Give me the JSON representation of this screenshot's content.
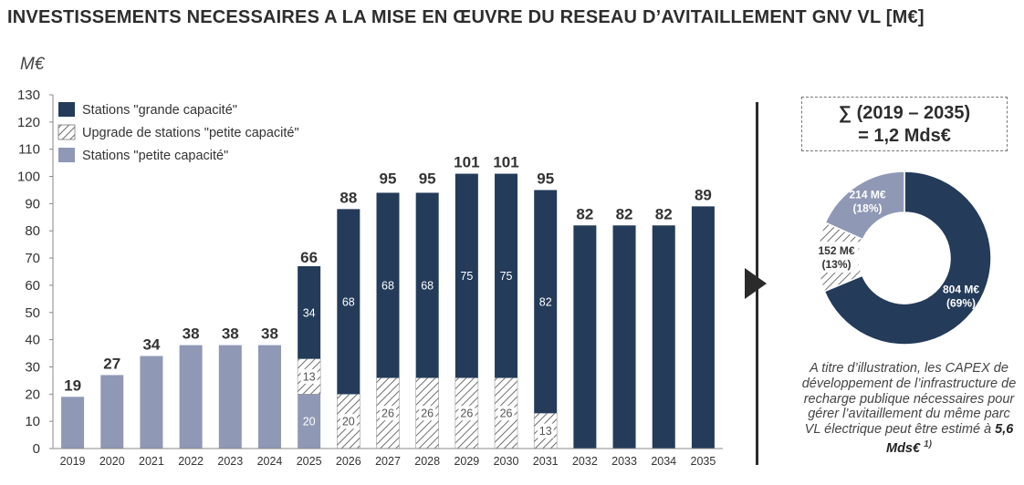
{
  "title": "INVESTISSEMENTS NECESSAIRES A LA MISE EN ŒUVRE DU RESEAU D’AVITAILLEMENT GNV VL [M€]",
  "summary": {
    "line1": "∑ (2019 – 2035)",
    "line2": "= 1,2 Mds€"
  },
  "note": {
    "text": "A titre d’illustration, les CAPEX de développement de l’infrastructure de recharge publique nécessaires pour gérer l’avitaillement du même parc VL électrique peut être estimé à ",
    "highlight": "5,6 Mds€",
    "footnote": "1)"
  },
  "colors": {
    "dark": "#243b5a",
    "light": "#8f98b5",
    "hatch": "#4a4a4a"
  },
  "chart_data": [
    {
      "type": "bar",
      "stacked": true,
      "ylabel": "M€",
      "ylim": [
        0,
        130
      ],
      "yticks": [
        0,
        10,
        20,
        30,
        40,
        50,
        60,
        70,
        80,
        90,
        100,
        110,
        120,
        130
      ],
      "categories": [
        "2019",
        "2020",
        "2021",
        "2022",
        "2023",
        "2024",
        "2025",
        "2026",
        "2027",
        "2028",
        "2029",
        "2030",
        "2031",
        "2032",
        "2033",
        "2034",
        "2035"
      ],
      "series": [
        {
          "name": "Stations \"petite capacité\"",
          "style": "light",
          "values": [
            19,
            27,
            34,
            38,
            38,
            38,
            20,
            0,
            0,
            0,
            0,
            0,
            0,
            0,
            0,
            0,
            0
          ],
          "labels": [
            "",
            "",
            "",
            "",
            "",
            "",
            "20",
            "",
            "",
            "",
            "",
            "",
            "",
            "",
            "",
            "",
            ""
          ]
        },
        {
          "name": "Upgrade de stations \"petite capacité\"",
          "style": "hatch",
          "values": [
            0,
            0,
            0,
            0,
            0,
            0,
            13,
            20,
            26,
            26,
            26,
            26,
            13,
            0,
            0,
            0,
            0
          ],
          "labels": [
            "",
            "",
            "",
            "",
            "",
            "",
            "13",
            "20",
            "26",
            "26",
            "26",
            "26",
            "13",
            "",
            "",
            "",
            ""
          ]
        },
        {
          "name": "Stations \"grande capacité\"",
          "style": "dark",
          "values": [
            0,
            0,
            0,
            0,
            0,
            0,
            34,
            68,
            68,
            68,
            75,
            75,
            82,
            82,
            82,
            82,
            89
          ],
          "labels": [
            "",
            "",
            "",
            "",
            "",
            "",
            "34",
            "68",
            "68",
            "68",
            "75",
            "75",
            "82",
            "",
            "",
            "",
            ""
          ]
        }
      ],
      "totals": [
        19,
        27,
        34,
        38,
        38,
        38,
        66,
        88,
        95,
        95,
        101,
        101,
        95,
        82,
        82,
        82,
        89
      ],
      "legend": {
        "placement": "top-left",
        "entries": [
          {
            "label": "Stations \"grande capacité\"",
            "style": "dark"
          },
          {
            "label": "Upgrade de stations \"petite capacité\"",
            "style": "hatch"
          },
          {
            "label": "Stations \"petite capacité\"",
            "style": "light"
          }
        ]
      }
    },
    {
      "type": "pie",
      "donut": true,
      "slices": [
        {
          "value": 804,
          "label": "804 M€",
          "pct": "(69%)",
          "style": "dark"
        },
        {
          "value": 152,
          "label": "152 M€",
          "pct": "(13%)",
          "style": "hatch"
        },
        {
          "value": 214,
          "label": "214 M€",
          "pct": "(18%)",
          "style": "light"
        }
      ]
    }
  ]
}
